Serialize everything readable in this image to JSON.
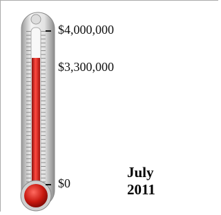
{
  "chart_data": {
    "type": "thermometer",
    "values": [
      3300000
    ],
    "value_labels": [
      "$3,300,000"
    ],
    "color": "#d9231f",
    "ylim": [
      0,
      4000000
    ],
    "yticks": [
      {
        "value": 0,
        "label": "$0"
      },
      {
        "value": 4000000,
        "label": "$4,000,000"
      }
    ],
    "annotation": "July 2011"
  }
}
